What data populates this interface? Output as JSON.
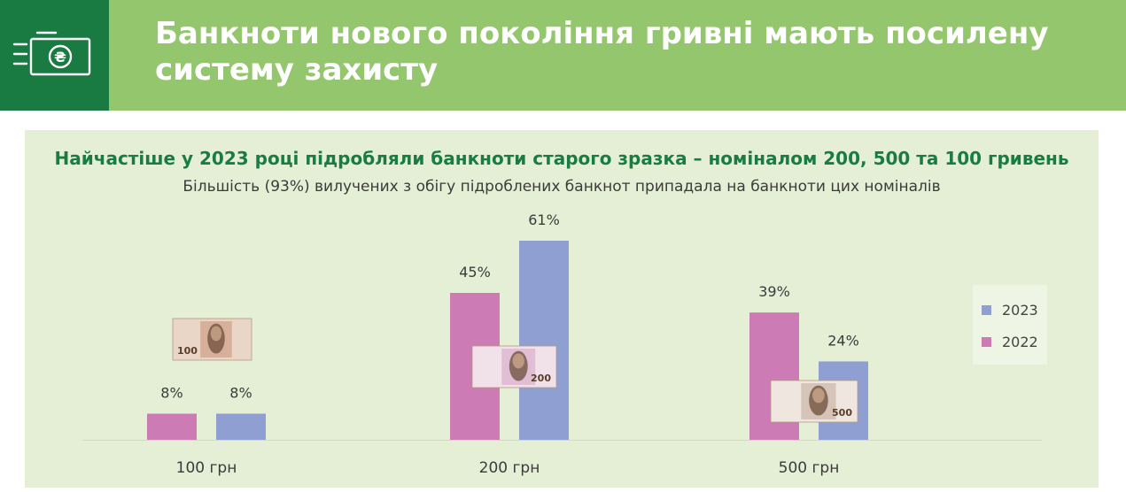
{
  "header": {
    "title": "Банкноти нового покоління гривні мають посилену систему захисту",
    "icon": "banknote-hryvnia-icon"
  },
  "colors": {
    "header_bg": "#94c66d",
    "logo_bg": "#1a7b42",
    "panel_bg": "#e4efd6",
    "title_green": "#197d41",
    "series_2022": "#cd7bb4",
    "series_2023": "#8f9fd2"
  },
  "chart_data": {
    "type": "bar",
    "title": "Найчастіше у 2023 році підробляли банкноти старого зразка – номіналом 200, 500 та 100 гривень",
    "subtitle": "Більшість (93%) вилучених з обігу підроблених банкнот припадала на банкноти цих номіналів",
    "categories": [
      "100 грн",
      "200 грн",
      "500 грн"
    ],
    "series": [
      {
        "name": "2022",
        "values": [
          8,
          45,
          39
        ],
        "labels": [
          "8%",
          "45%",
          "39%"
        ]
      },
      {
        "name": "2023",
        "values": [
          8,
          61,
          24
        ],
        "labels": [
          "8%",
          "61%",
          "24%"
        ]
      }
    ],
    "ylim": [
      0,
      61
    ],
    "legend_position": "right",
    "legend": [
      "2023",
      "2022"
    ],
    "banknote_images": [
      "100",
      "200",
      "500"
    ]
  }
}
